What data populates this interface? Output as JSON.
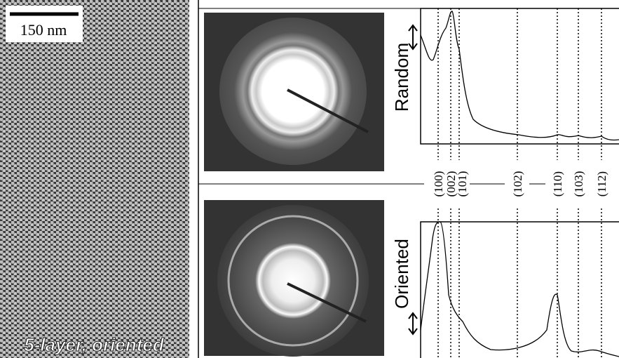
{
  "scale_bar": "150 nm",
  "caption": "5-layer, oriented",
  "panels": [
    {
      "label": "Random"
    },
    {
      "label": "Oriented"
    }
  ],
  "peaks": [
    "(100)",
    "(002)",
    "(101)",
    "(102)",
    "(110)",
    "(103)",
    "(112)"
  ]
}
